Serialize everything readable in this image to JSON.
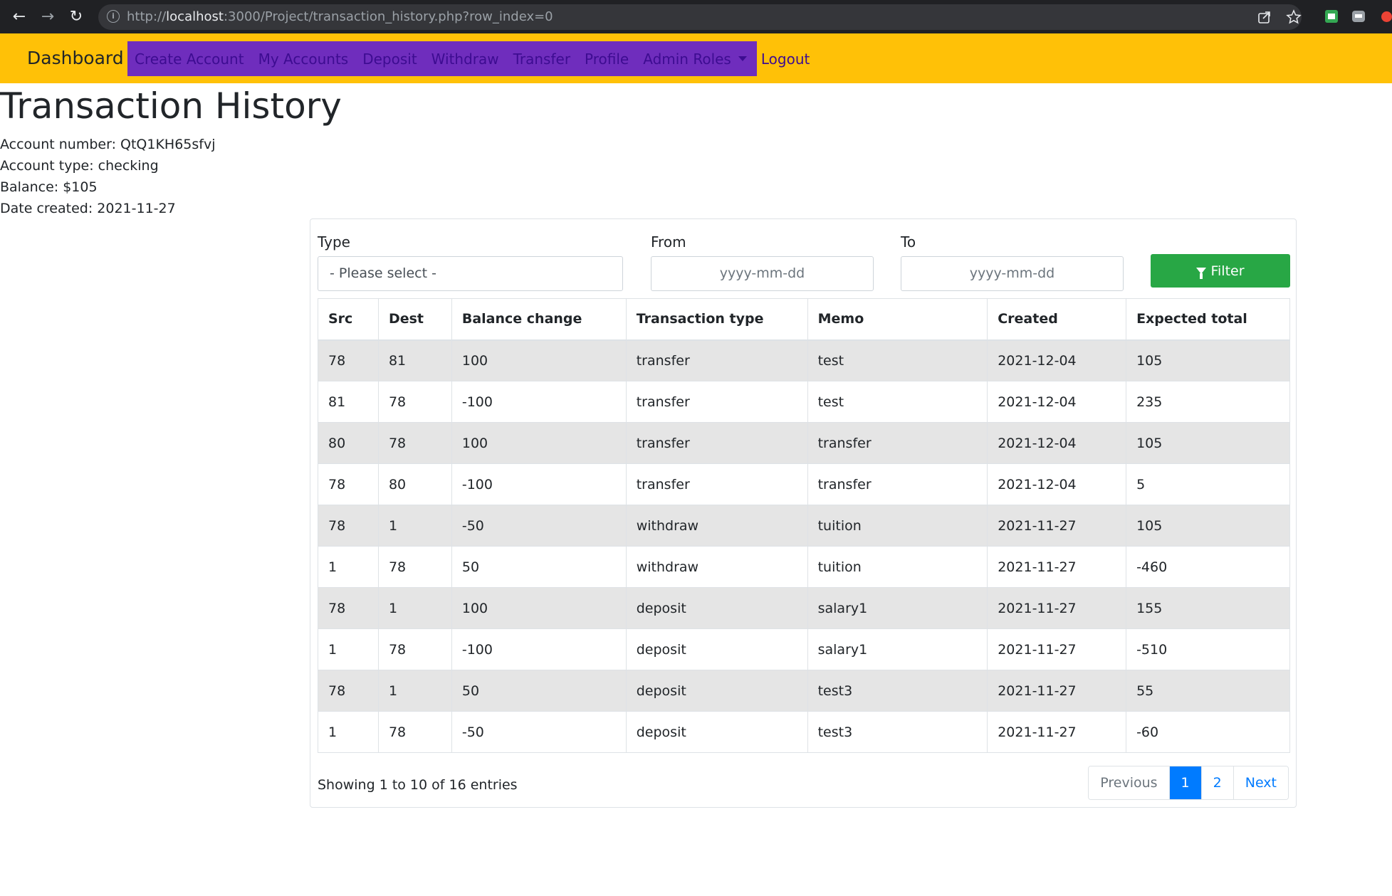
{
  "browser": {
    "url_prefix": "http://",
    "url_host": "localhost",
    "url_rest": ":3000/Project/transaction_history.php?row_index=0"
  },
  "navbar": {
    "brand": "Dashboard",
    "links": [
      "Create Account",
      "My Accounts",
      "Deposit",
      "Withdraw",
      "Transfer",
      "Profile",
      "Admin Roles",
      "Logout"
    ]
  },
  "page": {
    "title": "Transaction History",
    "account_number": "Account number: QtQ1KH65sfvj",
    "account_type": "Account type: checking",
    "balance": "Balance: $105",
    "date_created": "Date created: 2021-11-27"
  },
  "filters": {
    "type_label": "Type",
    "type_value": "- Please select -",
    "from_label": "From",
    "from_placeholder": "yyyy-mm-dd",
    "to_label": "To",
    "to_placeholder": "yyyy-mm-dd",
    "filter_button": "Filter"
  },
  "table": {
    "headers": [
      "Src",
      "Dest",
      "Balance change",
      "Transaction type",
      "Memo",
      "Created",
      "Expected total"
    ],
    "rows": [
      [
        "78",
        "81",
        "100",
        "transfer",
        "test",
        "2021-12-04",
        "105"
      ],
      [
        "81",
        "78",
        "-100",
        "transfer",
        "test",
        "2021-12-04",
        "235"
      ],
      [
        "80",
        "78",
        "100",
        "transfer",
        "transfer",
        "2021-12-04",
        "105"
      ],
      [
        "78",
        "80",
        "-100",
        "transfer",
        "transfer",
        "2021-12-04",
        "5"
      ],
      [
        "78",
        "1",
        "-50",
        "withdraw",
        "tuition",
        "2021-11-27",
        "105"
      ],
      [
        "1",
        "78",
        "50",
        "withdraw",
        "tuition",
        "2021-11-27",
        "-460"
      ],
      [
        "78",
        "1",
        "100",
        "deposit",
        "salary1",
        "2021-11-27",
        "155"
      ],
      [
        "1",
        "78",
        "-100",
        "deposit",
        "salary1",
        "2021-11-27",
        "-510"
      ],
      [
        "78",
        "1",
        "50",
        "deposit",
        "test3",
        "2021-11-27",
        "55"
      ],
      [
        "1",
        "78",
        "-50",
        "deposit",
        "test3",
        "2021-11-27",
        "-60"
      ]
    ]
  },
  "pagination": {
    "summary": "Showing 1 to 10 of 16 entries",
    "previous": "Previous",
    "pages": [
      "1",
      "2"
    ],
    "next": "Next",
    "active_page": "1"
  },
  "colors": {
    "navbar": "#ffc107",
    "nav_menu": "#6f2dbd",
    "filter_button": "#28a745",
    "active_page": "#007bff"
  }
}
